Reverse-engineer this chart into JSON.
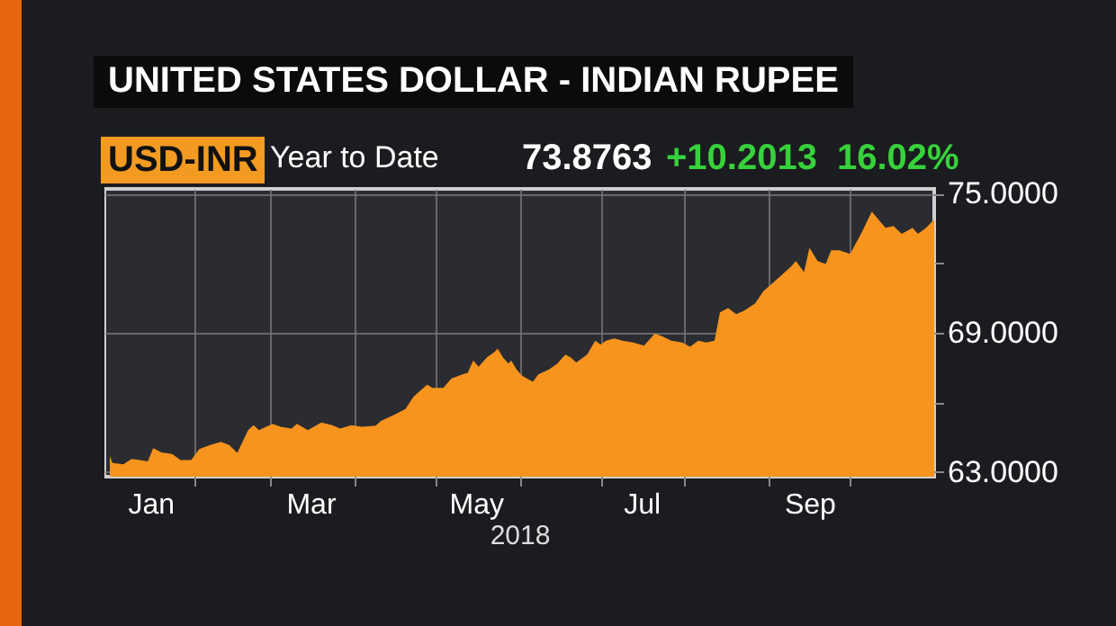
{
  "chart_data": {
    "type": "area",
    "title": "UNITED STATES DOLLAR - INDIAN RUPEE",
    "annotations": [
      "USD-INR",
      "Year to Date",
      "73.8763",
      "+10.2013",
      "16.02%"
    ],
    "xlabel": "2018",
    "x": [
      "2018-01-01",
      "2018-01-02",
      "2018-01-06",
      "2018-01-09",
      "2018-01-12",
      "2018-01-15",
      "2018-01-17",
      "2018-01-20",
      "2018-01-24",
      "2018-01-27",
      "2018-01-31",
      "2018-02-03",
      "2018-02-07",
      "2018-02-11",
      "2018-02-14",
      "2018-02-17",
      "2018-02-21",
      "2018-02-23",
      "2018-02-25",
      "2018-03-02",
      "2018-03-05",
      "2018-03-09",
      "2018-03-11",
      "2018-03-15",
      "2018-03-20",
      "2018-03-24",
      "2018-03-27",
      "2018-03-31",
      "2018-04-04",
      "2018-04-09",
      "2018-04-11",
      "2018-04-16",
      "2018-04-20",
      "2018-04-23",
      "2018-04-28",
      "2018-04-30",
      "2018-05-04",
      "2018-05-07",
      "2018-05-11",
      "2018-05-13",
      "2018-05-15",
      "2018-05-17",
      "2018-05-20",
      "2018-05-23",
      "2018-05-24",
      "2018-05-26",
      "2018-05-28",
      "2018-05-29",
      "2018-05-31",
      "2018-06-02",
      "2018-06-06",
      "2018-06-08",
      "2018-06-12",
      "2018-06-15",
      "2018-06-18",
      "2018-06-20",
      "2018-06-22",
      "2018-06-26",
      "2018-06-29",
      "2018-07-01",
      "2018-07-03",
      "2018-07-06",
      "2018-07-09",
      "2018-07-13",
      "2018-07-17",
      "2018-07-21",
      "2018-07-24",
      "2018-07-27",
      "2018-07-31",
      "2018-08-03",
      "2018-08-06",
      "2018-08-09",
      "2018-08-12",
      "2018-08-14",
      "2018-08-17",
      "2018-08-20",
      "2018-08-23",
      "2018-08-27",
      "2018-08-30",
      "2018-09-04",
      "2018-09-09",
      "2018-09-11",
      "2018-09-14",
      "2018-09-16",
      "2018-09-19",
      "2018-09-22",
      "2018-09-24",
      "2018-09-27",
      "2018-10-01",
      "2018-10-05",
      "2018-10-09",
      "2018-10-14",
      "2018-10-17",
      "2018-10-20",
      "2018-10-24",
      "2018-10-26",
      "2018-10-29",
      "2018-11-01"
    ],
    "series": [
      {
        "color": "#f7941d",
        "values": [
          63.68,
          63.39,
          63.33,
          63.57,
          63.52,
          63.46,
          64.03,
          63.85,
          63.78,
          63.52,
          63.52,
          63.99,
          64.17,
          64.3,
          64.17,
          63.83,
          64.81,
          65.02,
          64.81,
          65.08,
          64.95,
          64.87,
          65.08,
          64.81,
          65.13,
          65.02,
          64.87,
          65.02,
          64.95,
          65.0,
          65.2,
          65.47,
          65.72,
          66.25,
          66.76,
          66.63,
          66.63,
          67.03,
          67.21,
          67.28,
          67.81,
          67.54,
          67.93,
          68.19,
          68.32,
          67.93,
          67.67,
          67.81,
          67.42,
          67.15,
          66.89,
          67.21,
          67.42,
          67.67,
          68.06,
          67.93,
          67.72,
          68.06,
          68.66,
          68.5,
          68.66,
          68.76,
          68.66,
          68.58,
          68.45,
          68.97,
          68.84,
          68.66,
          68.58,
          68.4,
          68.66,
          68.58,
          68.66,
          69.88,
          70.07,
          69.8,
          69.96,
          70.27,
          70.79,
          71.31,
          71.83,
          72.09,
          71.62,
          72.66,
          72.09,
          71.96,
          72.56,
          72.56,
          72.4,
          73.26,
          74.22,
          73.52,
          73.6,
          73.26,
          73.52,
          73.26,
          73.52,
          73.88
        ]
      }
    ],
    "xlim": [
      "2017-12-30",
      "2018-11-01"
    ],
    "xticks": [
      {
        "value": "2018-01-16",
        "label": "Jan"
      },
      {
        "value": "2018-02-01",
        "label": null
      },
      {
        "value": "2018-03-01",
        "label": null
      },
      {
        "value": "2018-03-16",
        "label": "Mar"
      },
      {
        "value": "2018-04-01",
        "label": null
      },
      {
        "value": "2018-05-01",
        "label": null
      },
      {
        "value": "2018-05-16",
        "label": "May"
      },
      {
        "value": "2018-06-01",
        "label": null
      },
      {
        "value": "2018-07-01",
        "label": null
      },
      {
        "value": "2018-07-16",
        "label": "Jul"
      },
      {
        "value": "2018-08-01",
        "label": null
      },
      {
        "value": "2018-09-01",
        "label": null
      },
      {
        "value": "2018-09-16",
        "label": "Sep"
      },
      {
        "value": "2018-10-01",
        "label": null
      }
    ],
    "ylim": [
      62.8,
      75.2
    ],
    "yticks": [
      {
        "value": 63,
        "label": "63.0000"
      },
      {
        "value": 66,
        "label": null
      },
      {
        "value": 69,
        "label": "69.0000"
      },
      {
        "value": 72,
        "label": null
      },
      {
        "value": 75,
        "label": "75.0000"
      }
    ],
    "grid": true
  }
}
